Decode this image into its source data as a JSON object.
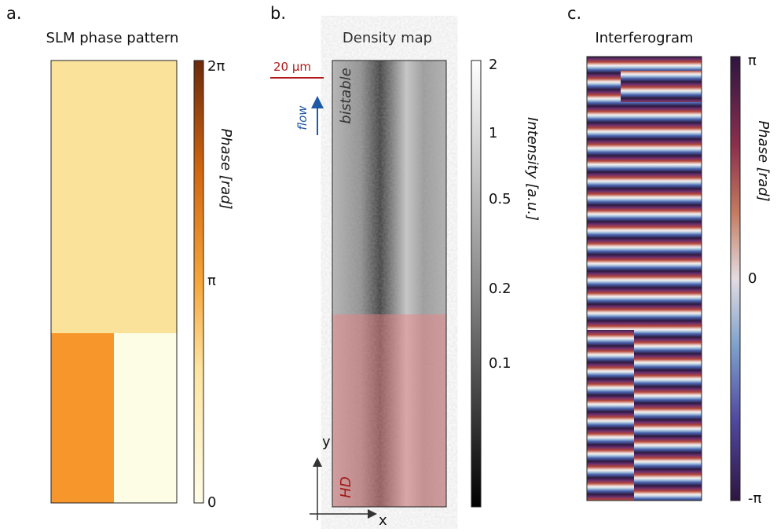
{
  "panels": [
    {
      "label": "a.",
      "title": "SLM phase pattern",
      "colorbar": {
        "ticks": [
          "2π",
          "π",
          "0"
        ],
        "label": "Phase [rad]"
      }
    },
    {
      "label": "b.",
      "title": "Density map",
      "colorbar": {
        "ticks": [
          "2",
          "1",
          "0.5",
          "0.2",
          "0.1"
        ],
        "label": "Intensity [a.u.]"
      },
      "annotations": {
        "scale_bar": "20 µm",
        "flow": "flow",
        "upper_region": "bistable",
        "lower_region": "HD",
        "axis_y": "y",
        "axis_x": "x"
      }
    },
    {
      "label": "c.",
      "title": "Interferogram",
      "colorbar": {
        "ticks": [
          "π",
          "0",
          "-π"
        ],
        "label": "Phase [rad]"
      }
    }
  ]
}
